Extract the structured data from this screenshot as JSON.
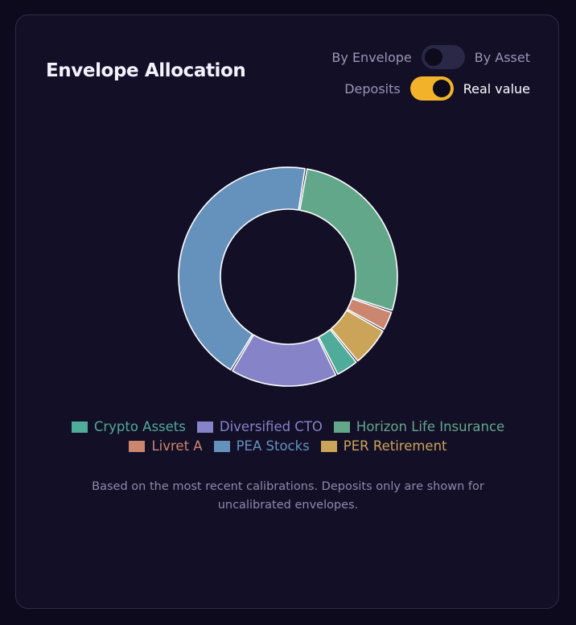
{
  "card": {
    "title": "Envelope Allocation"
  },
  "toggles": [
    {
      "left_label": "By Envelope",
      "right_label": "By Asset",
      "active": false
    },
    {
      "left_label": "Deposits",
      "right_label": "Real value",
      "active": true
    }
  ],
  "chart_data": {
    "type": "pie",
    "variant": "donut",
    "title": "",
    "legend_position": "bottom",
    "series": [
      {
        "name": "Crypto Assets",
        "value": 3.5,
        "color": "#4fab9a"
      },
      {
        "name": "Diversified CTO",
        "value": 16,
        "color": "#8683c9"
      },
      {
        "name": "Horizon Life Insurance",
        "value": 27.5,
        "color": "#63a78b"
      },
      {
        "name": "Livret A",
        "value": 3,
        "color": "#cb8670"
      },
      {
        "name": "PEA Stocks",
        "value": 44,
        "color": "#6592bd"
      },
      {
        "name": "PER Retirement",
        "value": 6,
        "color": "#cca459"
      }
    ],
    "draw_order": [
      "Horizon Life Insurance",
      "Livret A",
      "PER Retirement",
      "Crypto Assets",
      "Diversified CTO",
      "PEA Stocks"
    ]
  },
  "footnote": "Based on the most recent calibrations. Deposits only are shown for uncalibrated envelopes."
}
